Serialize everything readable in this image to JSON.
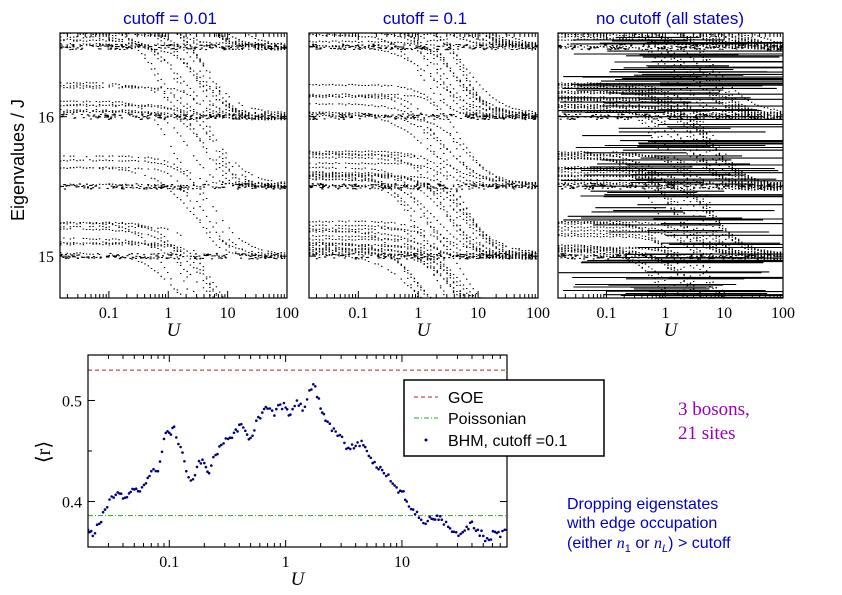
{
  "figure": {
    "panels": [
      {
        "title": "cutoff  = 0.01",
        "density": 0.55
      },
      {
        "title": "cutoff  = 0.1",
        "density": 0.8
      },
      {
        "title": "no cutoff (all states)",
        "density": 1.0
      }
    ],
    "top_ylabel": "Eigenvalues / J",
    "top_ylabel_symbol": "J",
    "top_yticks": [
      "15",
      "16"
    ],
    "top_xticks": [
      "0.1",
      "1",
      "10",
      "100"
    ],
    "xlabel": "U",
    "bottom_ylabel": "⟨r⟩",
    "bottom_xticks": [
      "0.1",
      "1",
      "10"
    ],
    "bottom_yticks": [
      "0.4",
      "0.5"
    ],
    "legend": {
      "goe": "GOE",
      "poissonian": "Poissonian",
      "bhm": "BHM, cutoff =0.1"
    },
    "annotation_bosons_line1": "3 bosons,",
    "annotation_bosons_line2": "21 sites",
    "annotation_drop_line1": "Dropping eigenstates",
    "annotation_drop_line2": "with edge occupation",
    "annotation_drop_line3_a": "(either ",
    "annotation_drop_line3_n1": "n",
    "annotation_drop_line3_sub1": "1",
    "annotation_drop_line3_or": " or ",
    "annotation_drop_line3_nL": "n",
    "annotation_drop_line3_subL": "L",
    "annotation_drop_line3_b": ") > cutoff",
    "colors": {
      "title": "#0000cc",
      "goe": "#b22222",
      "poisson": "#22aa22",
      "bhm": "#000080",
      "purple": "#9900bb",
      "blue_text": "#0000cc"
    }
  },
  "chart_data": [
    {
      "type": "scatter",
      "title": "cutoff  = 0.01",
      "xscale": "log",
      "xlim": [
        0.015,
        100
      ],
      "ylim": [
        14.7,
        16.6
      ],
      "xlabel": "U",
      "ylabel": "Eigenvalues / J",
      "description_values": {
        "plateaus": [
          15.0,
          15.5,
          16.0,
          16.5
        ]
      }
    },
    {
      "type": "scatter",
      "title": "cutoff  = 0.1",
      "xscale": "log",
      "xlim": [
        0.015,
        100
      ],
      "ylim": [
        14.7,
        16.6
      ],
      "xlabel": "U",
      "description_values": {
        "plateaus": [
          15.0,
          15.5,
          16.0,
          16.5
        ]
      }
    },
    {
      "type": "scatter",
      "title": "no cutoff (all states)",
      "xscale": "log",
      "xlim": [
        0.015,
        100
      ],
      "ylim": [
        14.7,
        16.6
      ],
      "xlabel": "U",
      "description_values": {
        "plateaus": [
          15.0,
          15.5,
          16.0,
          16.5
        ]
      }
    },
    {
      "type": "scatter",
      "xscale": "log",
      "xlim": [
        0.02,
        80
      ],
      "ylim": [
        0.355,
        0.545
      ],
      "xlabel": "U",
      "ylabel": "⟨r⟩",
      "legend_position": "top-right",
      "series": [
        {
          "name": "GOE",
          "kind": "hline",
          "y": 0.53
        },
        {
          "name": "Poissonian",
          "kind": "hline",
          "y": 0.386
        },
        {
          "name": "BHM, cutoff =0.1",
          "kind": "points",
          "x": [
            0.02,
            0.022,
            0.025,
            0.028,
            0.032,
            0.036,
            0.04,
            0.045,
            0.05,
            0.056,
            0.063,
            0.07,
            0.08,
            0.09,
            0.1,
            0.11,
            0.125,
            0.14,
            0.16,
            0.18,
            0.2,
            0.22,
            0.25,
            0.28,
            0.32,
            0.36,
            0.4,
            0.45,
            0.5,
            0.56,
            0.63,
            0.7,
            0.8,
            0.9,
            1.0,
            1.1,
            1.25,
            1.4,
            1.6,
            1.8,
            2.0,
            2.2,
            2.5,
            2.8,
            3.2,
            3.6,
            4.0,
            4.5,
            5.0,
            5.6,
            6.3,
            7.0,
            8.0,
            9.0,
            10,
            11,
            12.5,
            14,
            16,
            18,
            20,
            22,
            25,
            28,
            32,
            36,
            40,
            45,
            50,
            56,
            63,
            70,
            80
          ],
          "y": [
            0.372,
            0.366,
            0.378,
            0.392,
            0.405,
            0.409,
            0.403,
            0.408,
            0.412,
            0.41,
            0.418,
            0.43,
            0.43,
            0.462,
            0.468,
            0.474,
            0.454,
            0.43,
            0.422,
            0.44,
            0.438,
            0.428,
            0.446,
            0.456,
            0.462,
            0.468,
            0.476,
            0.47,
            0.463,
            0.48,
            0.488,
            0.492,
            0.485,
            0.496,
            0.493,
            0.486,
            0.5,
            0.49,
            0.51,
            0.514,
            0.492,
            0.48,
            0.47,
            0.465,
            0.458,
            0.452,
            0.455,
            0.46,
            0.45,
            0.438,
            0.432,
            0.428,
            0.42,
            0.414,
            0.41,
            0.4,
            0.392,
            0.384,
            0.378,
            0.383,
            0.386,
            0.382,
            0.375,
            0.37,
            0.368,
            0.375,
            0.38,
            0.372,
            0.366,
            0.362,
            0.37,
            0.365,
            0.372
          ]
        }
      ]
    }
  ]
}
